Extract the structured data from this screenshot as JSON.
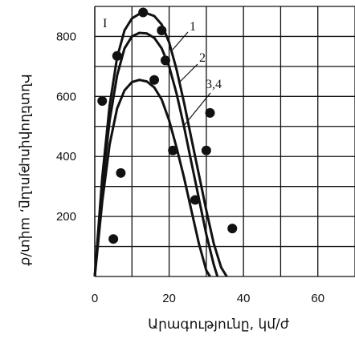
{
  "chart_data": {
    "type": "line",
    "xlabel": "Արագությունը, կմ/ժ",
    "ylabel": "Ինտենսիվությունը, ավտ/ժ",
    "xlim": [
      0,
      70
    ],
    "ylim": [
      0,
      900
    ],
    "x_ticks": [
      0,
      20,
      40,
      60
    ],
    "y_ticks": [
      200,
      400,
      600,
      800
    ],
    "grid": true,
    "region_label": "I",
    "series": [
      {
        "name": "1",
        "x": [
          0,
          2,
          4,
          6,
          8,
          10,
          12,
          14,
          16,
          18,
          20,
          22,
          24,
          26,
          28,
          30,
          32,
          34,
          35.5
        ],
        "values": [
          0,
          330,
          570,
          730,
          820,
          860,
          875,
          877,
          868,
          840,
          780,
          690,
          580,
          460,
          340,
          220,
          110,
          30,
          0
        ]
      },
      {
        "name": "2",
        "x": [
          0,
          2,
          4,
          6,
          8,
          10,
          12,
          14,
          16,
          18,
          20,
          22,
          24,
          26,
          28,
          30,
          32,
          33
        ],
        "values": [
          0,
          300,
          520,
          670,
          760,
          800,
          812,
          810,
          795,
          760,
          700,
          610,
          500,
          380,
          260,
          140,
          40,
          0
        ]
      },
      {
        "name": "3,4",
        "x": [
          0,
          2,
          4,
          6,
          8,
          10,
          12,
          14,
          16,
          18,
          20,
          22,
          24,
          26,
          28,
          30,
          31
        ],
        "values": [
          0,
          250,
          440,
          560,
          620,
          648,
          655,
          650,
          630,
          590,
          520,
          430,
          330,
          220,
          110,
          20,
          0
        ]
      },
      {
        "name": "observed",
        "x": [
          2,
          5,
          6,
          7,
          13,
          16,
          18,
          19,
          21,
          27,
          30,
          31,
          37
        ],
        "values": [
          585,
          125,
          735,
          345,
          880,
          655,
          820,
          720,
          420,
          255,
          420,
          545,
          160
        ]
      }
    ]
  }
}
